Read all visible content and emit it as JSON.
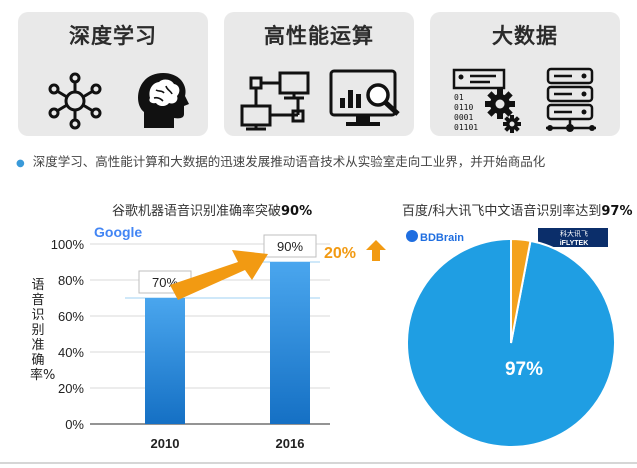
{
  "cards": [
    {
      "title": "深度学习",
      "icon_left": "neural-network-icon",
      "icon_right": "brain-head-icon"
    },
    {
      "title": "高性能运算",
      "icon_left": "network-computers-icon",
      "icon_right": "analytics-monitor-icon"
    },
    {
      "title": "大数据",
      "icon_left": "binary-gears-icon",
      "icon_right": "server-database-icon"
    }
  ],
  "bullet": "深度学习、高性能计算和大数据的迅速发展推动语音技术从实验室走向工业界，并开始商品化",
  "colors": {
    "bar": "#1d86da",
    "bar_light": "#4aa6ee",
    "orange": "#f29a12",
    "pie_main": "#1f9ee3",
    "pie_slice": "#f4a21d",
    "card_bg": "#e9e9e9"
  },
  "chart_data": [
    {
      "type": "bar",
      "title_text": "谷歌机器语音识别准确率突破",
      "title_bold": "90%",
      "logo": "Google",
      "ylabel": "语音识别准确率%",
      "categories": [
        "2010",
        "2016"
      ],
      "values": [
        70,
        90
      ],
      "data_labels": [
        "70%",
        "90%"
      ],
      "yticks": [
        "0%",
        "20%",
        "40%",
        "60%",
        "80%",
        "100%"
      ],
      "ylim": [
        0,
        100
      ],
      "annotation": "20%",
      "grid": true
    },
    {
      "type": "pie",
      "title_text": "百度/科大讯飞中文语音识别率达到",
      "title_bold": "97%",
      "logos": [
        "BDBrain",
        "科大讯飞",
        "iFLYTEK"
      ],
      "values": [
        97,
        3
      ],
      "data_labels": [
        "97%"
      ]
    }
  ]
}
